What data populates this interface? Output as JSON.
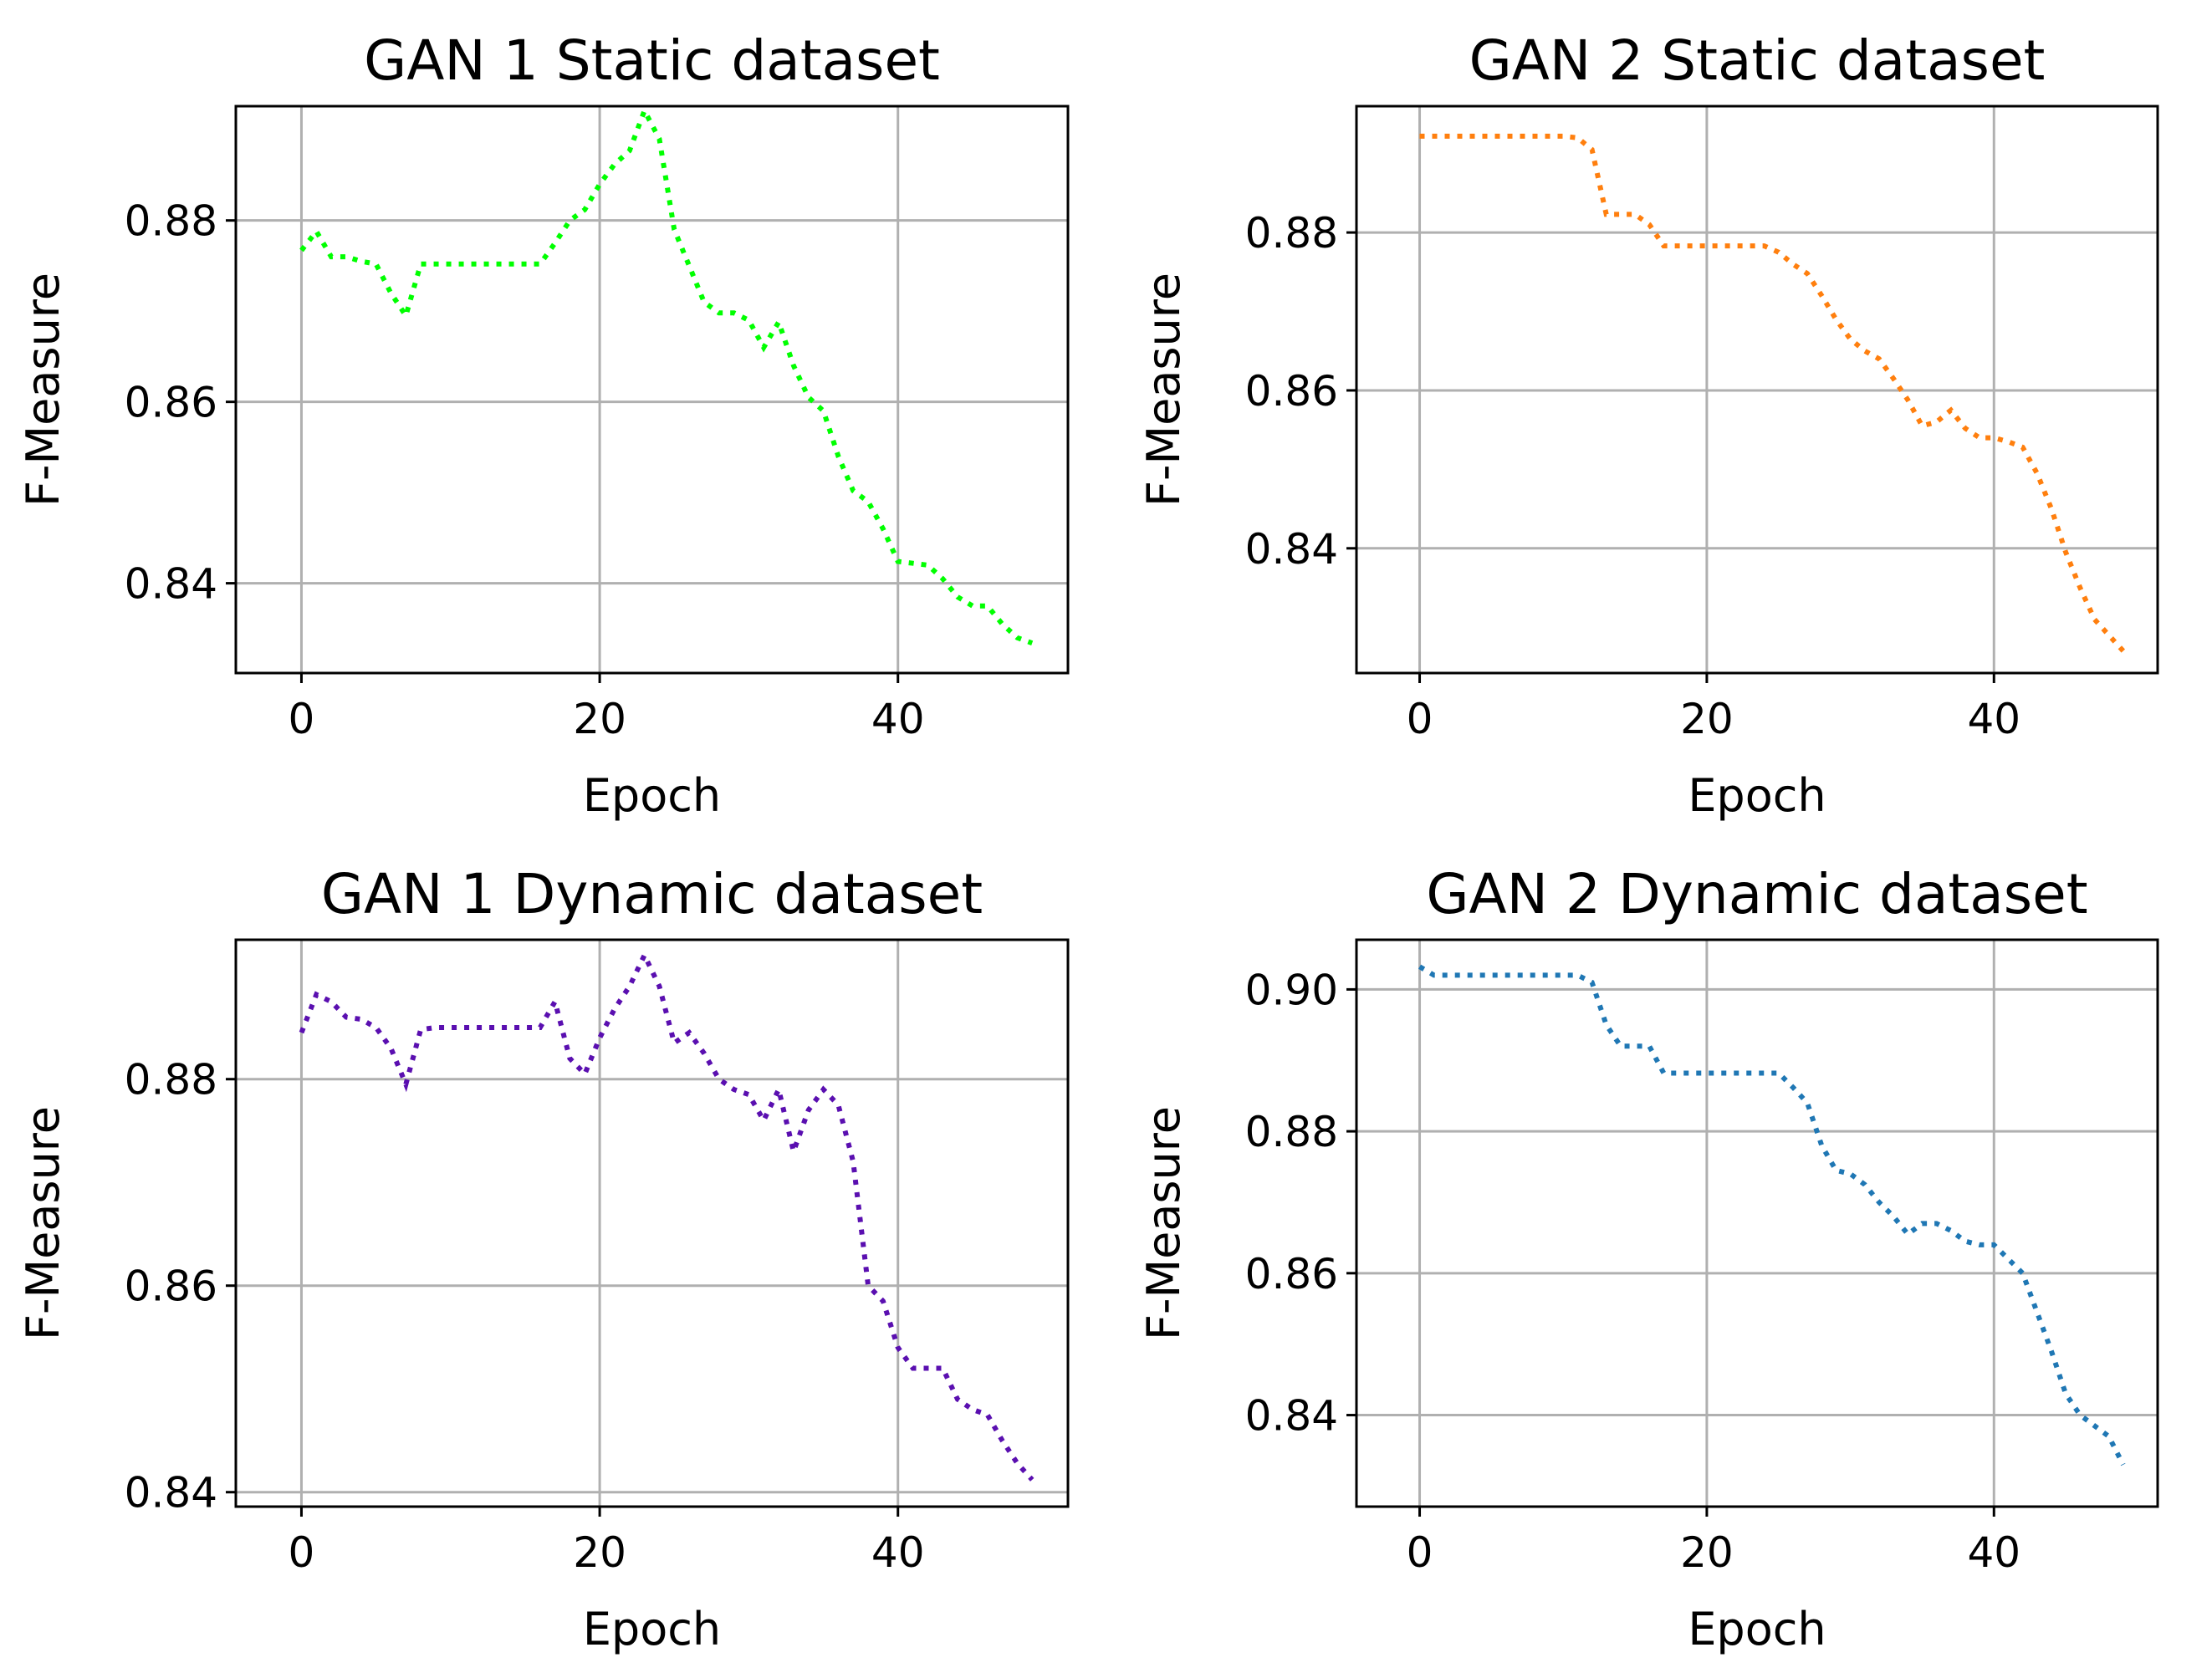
{
  "chart_data": [
    {
      "type": "line",
      "title": "GAN 1 Static dataset",
      "xlabel": "Epoch",
      "ylabel": "F-Measure",
      "color": "#00ff00",
      "xlim": [
        -4.4,
        51.4
      ],
      "ylim": [
        0.8301,
        0.8926
      ],
      "xticks": [
        0,
        20,
        40
      ],
      "yticks": [
        0.84,
        0.86,
        0.88
      ],
      "ytick_labels": [
        "0.84",
        "0.86",
        "0.88"
      ],
      "x": [
        0,
        1,
        2,
        3,
        4,
        5,
        6,
        7,
        8,
        9,
        10,
        11,
        12,
        13,
        14,
        15,
        16,
        17,
        18,
        19,
        20,
        21,
        22,
        23,
        24,
        25,
        26,
        27,
        28,
        29,
        30,
        31,
        32,
        33,
        34,
        35,
        36,
        37,
        38,
        39,
        40,
        41,
        42,
        43,
        44,
        45,
        46,
        47,
        48,
        49
      ],
      "values": [
        0.8767,
        0.8788,
        0.876,
        0.876,
        0.8755,
        0.8752,
        0.872,
        0.8695,
        0.8752,
        0.8752,
        0.8752,
        0.8752,
        0.8752,
        0.8752,
        0.8752,
        0.8752,
        0.8752,
        0.8775,
        0.88,
        0.8812,
        0.884,
        0.8862,
        0.8877,
        0.8921,
        0.889,
        0.879,
        0.875,
        0.871,
        0.8698,
        0.8698,
        0.869,
        0.866,
        0.8688,
        0.864,
        0.8605,
        0.859,
        0.854,
        0.8502,
        0.849,
        0.846,
        0.8424,
        0.8422,
        0.842,
        0.8405,
        0.8385,
        0.8375,
        0.8375,
        0.8355,
        0.834,
        0.8334
      ]
    },
    {
      "type": "line",
      "title": "GAN 2 Static dataset",
      "xlabel": "Epoch",
      "ylabel": "F-Measure",
      "color": "#ff7f0e",
      "xlim": [
        -4.4,
        51.4
      ],
      "ylim": [
        0.8242,
        0.896
      ],
      "xticks": [
        0,
        20,
        40
      ],
      "yticks": [
        0.84,
        0.86,
        0.88
      ],
      "ytick_labels": [
        "0.84",
        "0.86",
        "0.88"
      ],
      "x": [
        0,
        1,
        2,
        3,
        4,
        5,
        6,
        7,
        8,
        9,
        10,
        11,
        12,
        13,
        14,
        15,
        16,
        17,
        18,
        19,
        20,
        21,
        22,
        23,
        24,
        25,
        26,
        27,
        28,
        29,
        30,
        31,
        32,
        33,
        34,
        35,
        36,
        37,
        38,
        39,
        40,
        41,
        42,
        43,
        44,
        45,
        46,
        47,
        48,
        49
      ],
      "values": [
        0.8922,
        0.8922,
        0.8922,
        0.8922,
        0.8922,
        0.8922,
        0.8922,
        0.8922,
        0.8922,
        0.8922,
        0.8922,
        0.892,
        0.8905,
        0.8823,
        0.8823,
        0.8823,
        0.881,
        0.8783,
        0.8783,
        0.8783,
        0.8783,
        0.8783,
        0.8783,
        0.8783,
        0.8783,
        0.8775,
        0.876,
        0.8748,
        0.872,
        0.869,
        0.8665,
        0.865,
        0.864,
        0.8615,
        0.8588,
        0.8555,
        0.856,
        0.8575,
        0.8552,
        0.854,
        0.854,
        0.8535,
        0.8528,
        0.8495,
        0.845,
        0.8395,
        0.835,
        0.831,
        0.829,
        0.827
      ]
    },
    {
      "type": "line",
      "title": "GAN 1 Dynamic dataset",
      "xlabel": "Epoch",
      "ylabel": "F-Measure",
      "color": "#5a0fb0",
      "xlim": [
        -4.4,
        51.4
      ],
      "ylim": [
        0.8386,
        0.8935
      ],
      "xticks": [
        0,
        20,
        40
      ],
      "yticks": [
        0.84,
        0.86,
        0.88
      ],
      "ytick_labels": [
        "0.84",
        "0.86",
        "0.88"
      ],
      "x": [
        0,
        1,
        2,
        3,
        4,
        5,
        6,
        7,
        8,
        9,
        10,
        11,
        12,
        13,
        14,
        15,
        16,
        17,
        18,
        19,
        20,
        21,
        22,
        23,
        24,
        25,
        26,
        27,
        28,
        29,
        30,
        31,
        32,
        33,
        34,
        35,
        36,
        37,
        38,
        39,
        40,
        41,
        42,
        43,
        44,
        45,
        46,
        47,
        48,
        49
      ],
      "values": [
        0.8845,
        0.8882,
        0.8875,
        0.886,
        0.8858,
        0.885,
        0.883,
        0.8795,
        0.8848,
        0.885,
        0.885,
        0.885,
        0.885,
        0.885,
        0.885,
        0.885,
        0.885,
        0.8875,
        0.882,
        0.8805,
        0.884,
        0.8868,
        0.889,
        0.892,
        0.889,
        0.8835,
        0.8845,
        0.8825,
        0.88,
        0.879,
        0.8785,
        0.876,
        0.879,
        0.873,
        0.877,
        0.879,
        0.8775,
        0.872,
        0.86,
        0.8585,
        0.854,
        0.852,
        0.852,
        0.852,
        0.849,
        0.848,
        0.8475,
        0.845,
        0.8428,
        0.8412
      ]
    },
    {
      "type": "line",
      "title": "GAN 2 Dynamic dataset",
      "xlabel": "Epoch",
      "ylabel": "F-Measure",
      "color": "#1f77b4",
      "xlim": [
        -4.4,
        51.4
      ],
      "ylim": [
        0.8271,
        0.907
      ],
      "xticks": [
        0,
        20,
        40
      ],
      "yticks": [
        0.84,
        0.86,
        0.88,
        0.9
      ],
      "ytick_labels": [
        "0.84",
        "0.86",
        "0.88",
        "0.90"
      ],
      "x": [
        0,
        1,
        2,
        3,
        4,
        5,
        6,
        7,
        8,
        9,
        10,
        11,
        12,
        13,
        14,
        15,
        16,
        17,
        18,
        19,
        20,
        21,
        22,
        23,
        24,
        25,
        26,
        27,
        28,
        29,
        30,
        31,
        32,
        33,
        34,
        35,
        36,
        37,
        38,
        39,
        40,
        41,
        42,
        43,
        44,
        45,
        46,
        47,
        48,
        49
      ],
      "values": [
        0.9032,
        0.902,
        0.902,
        0.902,
        0.902,
        0.902,
        0.902,
        0.902,
        0.902,
        0.902,
        0.902,
        0.902,
        0.901,
        0.895,
        0.892,
        0.892,
        0.892,
        0.8882,
        0.8882,
        0.8882,
        0.8882,
        0.8882,
        0.8882,
        0.8882,
        0.8882,
        0.8882,
        0.8862,
        0.884,
        0.878,
        0.8745,
        0.874,
        0.8725,
        0.87,
        0.868,
        0.8655,
        0.867,
        0.867,
        0.866,
        0.8645,
        0.864,
        0.864,
        0.862,
        0.86,
        0.8545,
        0.849,
        0.843,
        0.84,
        0.8385,
        0.837,
        0.833
      ]
    }
  ]
}
